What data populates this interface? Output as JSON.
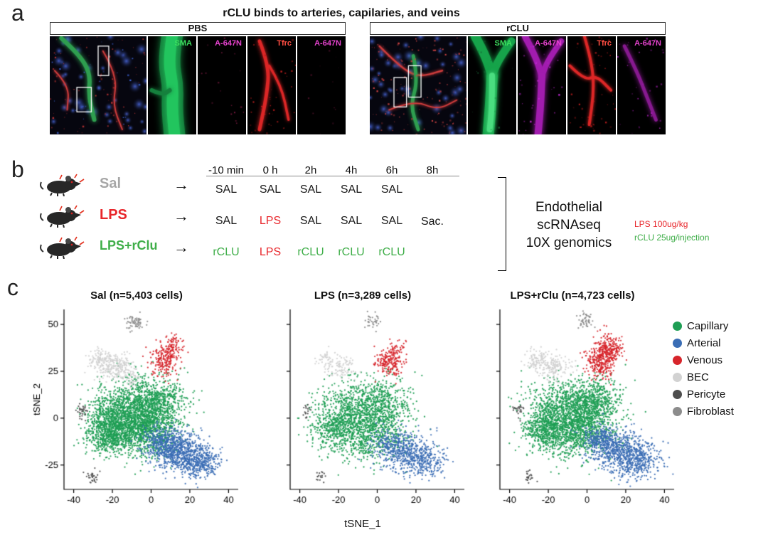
{
  "figure": {
    "background": "#ffffff"
  },
  "panel_a": {
    "label": "a",
    "title": "rCLU binds to arteries, capilaries, and veins",
    "channel_colors": {
      "SMA": "#3ce05e",
      "A-647N": "#e643cf",
      "Tfrc": "#ff4d42"
    },
    "groups": [
      {
        "name": "PBS",
        "channels": [
          "SMA",
          "A-647N",
          "Tfrc",
          "A-647N"
        ]
      },
      {
        "name": "rCLU",
        "channels": [
          "SMA",
          "A-647N",
          "Tfrc",
          "A-647N"
        ]
      }
    ]
  },
  "panel_b": {
    "label": "b",
    "timepoints": [
      "-10 min",
      "0 h",
      "2h",
      "4h",
      "6h",
      "8h"
    ],
    "rows": [
      {
        "group": "Sal",
        "color": "#a6a6a6",
        "doses": [
          "SAL",
          "SAL",
          "SAL",
          "SAL",
          "SAL"
        ]
      },
      {
        "group": "LPS",
        "color": "#e8262b",
        "doses": [
          "SAL",
          "LPS",
          "SAL",
          "SAL",
          "SAL"
        ]
      },
      {
        "group": "LPS+rClu",
        "color": "#3fae49",
        "doses": [
          "rCLU",
          "LPS",
          "rCLU",
          "rCLU",
          "rCLU"
        ]
      }
    ],
    "sac_label": "Sac.",
    "outcome": "Endothelial\nscRNAseq\n10X genomics",
    "notes": [
      {
        "text": "LPS 100ug/kg",
        "color": "#e8262b"
      },
      {
        "text": "rCLU 25ug/injection",
        "color": "#3fae49"
      }
    ]
  },
  "panel_c": {
    "label": "c",
    "xlabel": "tSNE_1",
    "ylabel": "tSNE_2",
    "legend": [
      {
        "label": "Capillary",
        "color": "#1e9e54"
      },
      {
        "label": "Arterial",
        "color": "#3a6db5"
      },
      {
        "label": "Venous",
        "color": "#d7252b"
      },
      {
        "label": "BEC",
        "color": "#d2d2d2"
      },
      {
        "label": "Pericyte",
        "color": "#4d4d4d"
      },
      {
        "label": "Fibroblast",
        "color": "#8c8c8c"
      }
    ],
    "chart_data": [
      {
        "type": "scatter",
        "title": "Sal (n=5,403 cells)",
        "n_cells": 5403,
        "xlabel": "tSNE_1",
        "ylabel": "tSNE_2",
        "xlim": [
          -45,
          45
        ],
        "ylim": [
          -38,
          58
        ],
        "xticks": [
          -40,
          -20,
          0,
          20,
          40
        ],
        "yticks": [
          -25,
          0,
          25,
          50
        ],
        "clusters": [
          {
            "name": "Capillary",
            "color": "#1e9e54",
            "n": 3400,
            "blobs": [
              {
                "cx": -14,
                "cy": 4,
                "sx": 9,
                "sy": 8,
                "f": 0.28
              },
              {
                "cx": -4,
                "cy": -7,
                "sx": 9,
                "sy": 7,
                "f": 0.27
              },
              {
                "cx": -22,
                "cy": -7,
                "sx": 6,
                "sy": 6,
                "f": 0.2
              },
              {
                "cx": 2,
                "cy": 7,
                "sx": 8,
                "sy": 7,
                "f": 0.25
              }
            ]
          },
          {
            "name": "Arterial",
            "color": "#3a6db5",
            "n": 1250,
            "blobs": [
              {
                "cx": 13,
                "cy": -17,
                "sx": 7,
                "sy": 5,
                "f": 0.45
              },
              {
                "cx": 24,
                "cy": -23,
                "sx": 6,
                "sy": 4.5,
                "f": 0.35
              },
              {
                "cx": 6,
                "cy": -12,
                "sx": 5,
                "sy": 4,
                "f": 0.2
              }
            ]
          },
          {
            "name": "Venous",
            "color": "#d7252b",
            "n": 280,
            "blobs": [
              {
                "cx": 7,
                "cy": 30,
                "sx": 3.5,
                "sy": 4,
                "f": 0.6
              },
              {
                "cx": 11,
                "cy": 37,
                "sx": 3,
                "sy": 3.5,
                "f": 0.4
              }
            ]
          },
          {
            "name": "BEC",
            "color": "#d2d2d2",
            "n": 350,
            "blobs": [
              {
                "cx": -17,
                "cy": 27,
                "sx": 4.5,
                "sy": 3.5,
                "f": 0.6
              },
              {
                "cx": -26,
                "cy": 31,
                "sx": 3,
                "sy": 3,
                "f": 0.3
              },
              {
                "cx": -10,
                "cy": 20,
                "sx": 2,
                "sy": 2,
                "f": 0.1
              }
            ]
          },
          {
            "name": "Pericyte",
            "color": "#4d4d4d",
            "n": 60,
            "blobs": [
              {
                "cx": -36,
                "cy": 4,
                "sx": 1.5,
                "sy": 2,
                "f": 0.5
              },
              {
                "cx": -30,
                "cy": -31,
                "sx": 1.5,
                "sy": 1.6,
                "f": 0.5
              }
            ]
          },
          {
            "name": "Fibroblast",
            "color": "#8c8c8c",
            "n": 63,
            "blobs": [
              {
                "cx": -8,
                "cy": 51,
                "sx": 2.2,
                "sy": 2,
                "f": 1
              }
            ]
          }
        ]
      },
      {
        "type": "scatter",
        "title": "LPS (n=3,289 cells)",
        "n_cells": 3289,
        "xlabel": "tSNE_1",
        "ylabel": "tSNE_2",
        "xlim": [
          -45,
          45
        ],
        "ylim": [
          -38,
          58
        ],
        "xticks": [
          -40,
          -20,
          0,
          20,
          40
        ],
        "yticks": [
          -25,
          0,
          25,
          50
        ],
        "clusters": [
          {
            "name": "Capillary",
            "color": "#1e9e54",
            "n": 2100,
            "blobs": [
              {
                "cx": -13,
                "cy": 4,
                "sx": 9,
                "sy": 8,
                "f": 0.28
              },
              {
                "cx": -3,
                "cy": -8,
                "sx": 9,
                "sy": 7,
                "f": 0.29
              },
              {
                "cx": -21,
                "cy": -6,
                "sx": 6,
                "sy": 6,
                "f": 0.18
              },
              {
                "cx": 3,
                "cy": 7,
                "sx": 8,
                "sy": 7,
                "f": 0.25
              }
            ]
          },
          {
            "name": "Arterial",
            "color": "#3a6db5",
            "n": 760,
            "blobs": [
              {
                "cx": 14,
                "cy": -18,
                "sx": 7,
                "sy": 5,
                "f": 0.45
              },
              {
                "cx": 24,
                "cy": -23,
                "sx": 6,
                "sy": 4.5,
                "f": 0.35
              },
              {
                "cx": 7,
                "cy": -13,
                "sx": 5,
                "sy": 4,
                "f": 0.2
              }
            ]
          },
          {
            "name": "Venous",
            "color": "#d7252b",
            "n": 230,
            "blobs": [
              {
                "cx": 5,
                "cy": 29,
                "sx": 3.5,
                "sy": 4,
                "f": 0.6
              },
              {
                "cx": 9,
                "cy": 35,
                "sx": 3,
                "sy": 3.5,
                "f": 0.4
              }
            ]
          },
          {
            "name": "BEC",
            "color": "#d2d2d2",
            "n": 130,
            "blobs": [
              {
                "cx": -18,
                "cy": 27,
                "sx": 4,
                "sy": 3,
                "f": 0.7
              },
              {
                "cx": -26,
                "cy": 31,
                "sx": 3,
                "sy": 3,
                "f": 0.3
              }
            ]
          },
          {
            "name": "Pericyte",
            "color": "#4d4d4d",
            "n": 34,
            "blobs": [
              {
                "cx": -36,
                "cy": 4,
                "sx": 1.5,
                "sy": 2,
                "f": 0.5
              },
              {
                "cx": -30,
                "cy": -31,
                "sx": 1.5,
                "sy": 1.6,
                "f": 0.5
              }
            ]
          },
          {
            "name": "Fibroblast",
            "color": "#8c8c8c",
            "n": 35,
            "blobs": [
              {
                "cx": -2,
                "cy": 52,
                "sx": 2.2,
                "sy": 2,
                "f": 1
              }
            ]
          }
        ]
      },
      {
        "type": "scatter",
        "title": "LPS+rClu (n=4,723 cells)",
        "n_cells": 4723,
        "xlabel": "tSNE_1",
        "ylabel": "tSNE_2",
        "xlim": [
          -45,
          45
        ],
        "ylim": [
          -38,
          58
        ],
        "xticks": [
          -40,
          -20,
          0,
          20,
          40
        ],
        "yticks": [
          -25,
          0,
          25,
          50
        ],
        "clusters": [
          {
            "name": "Capillary",
            "color": "#1e9e54",
            "n": 2800,
            "blobs": [
              {
                "cx": -13,
                "cy": 4,
                "sx": 9,
                "sy": 8,
                "f": 0.28
              },
              {
                "cx": -3,
                "cy": -7,
                "sx": 9,
                "sy": 7,
                "f": 0.27
              },
              {
                "cx": -21,
                "cy": -6,
                "sx": 6,
                "sy": 6,
                "f": 0.2
              },
              {
                "cx": 3,
                "cy": 8,
                "sx": 8,
                "sy": 7,
                "f": 0.25
              }
            ]
          },
          {
            "name": "Arterial",
            "color": "#3a6db5",
            "n": 1100,
            "blobs": [
              {
                "cx": 14,
                "cy": -16,
                "sx": 7,
                "sy": 5,
                "f": 0.4
              },
              {
                "cx": 25,
                "cy": -22,
                "sx": 6.5,
                "sy": 5,
                "f": 0.4
              },
              {
                "cx": 7,
                "cy": -11,
                "sx": 5,
                "sy": 4,
                "f": 0.2
              }
            ]
          },
          {
            "name": "Venous",
            "color": "#d7252b",
            "n": 480,
            "blobs": [
              {
                "cx": 7,
                "cy": 30,
                "sx": 4,
                "sy": 4.5,
                "f": 0.5
              },
              {
                "cx": 11,
                "cy": 37,
                "sx": 3.5,
                "sy": 4,
                "f": 0.5
              }
            ]
          },
          {
            "name": "BEC",
            "color": "#d2d2d2",
            "n": 250,
            "blobs": [
              {
                "cx": -17,
                "cy": 27,
                "sx": 4.5,
                "sy": 3.5,
                "f": 0.6
              },
              {
                "cx": -26,
                "cy": 31,
                "sx": 3,
                "sy": 3,
                "f": 0.4
              }
            ]
          },
          {
            "name": "Pericyte",
            "color": "#4d4d4d",
            "n": 45,
            "blobs": [
              {
                "cx": -36,
                "cy": 4,
                "sx": 1.5,
                "sy": 2,
                "f": 0.5
              },
              {
                "cx": -30,
                "cy": -31,
                "sx": 1.5,
                "sy": 1.6,
                "f": 0.5
              }
            ]
          },
          {
            "name": "Fibroblast",
            "color": "#8c8c8c",
            "n": 48,
            "blobs": [
              {
                "cx": -1,
                "cy": 52,
                "sx": 2.2,
                "sy": 2,
                "f": 1
              }
            ]
          }
        ]
      }
    ]
  }
}
